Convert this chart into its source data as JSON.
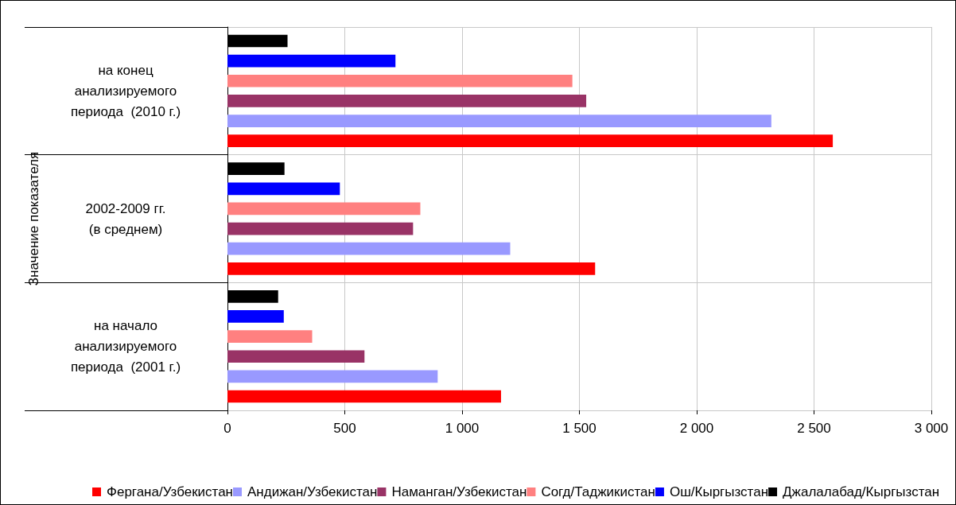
{
  "chart_data": {
    "type": "bar",
    "orientation": "horizontal",
    "ylabel": "Значение показателя",
    "categories": [
      "на конец\nанализируемого\nпериода  (2010 г.)",
      "2002-2009 гг.\n(в среднем)",
      "на начало\nанализируемого\nпериода  (2001 г.)"
    ],
    "series": [
      {
        "name": "Фергана/Узбекистан",
        "color": "#ff0000",
        "values": [
          2580,
          1567,
          1166
        ]
      },
      {
        "name": "Андижан/Узбекистан",
        "color": "#9999ff",
        "values": [
          2318,
          1205,
          896
        ]
      },
      {
        "name": "Наманган/Узбекистан",
        "color": "#993366",
        "values": [
          1529,
          791,
          584
        ]
      },
      {
        "name": "Согд/Таджикистан",
        "color": "#ff8080",
        "values": [
          1470,
          822,
          361
        ]
      },
      {
        "name": "Ош/Кыргызстан",
        "color": "#0000ff",
        "values": [
          716,
          479,
          240
        ]
      },
      {
        "name": "Джалалабад/Кыргызстан",
        "color": "#000000",
        "values": [
          256,
          243,
          216
        ]
      }
    ],
    "xlim": [
      0,
      3000
    ],
    "xticks": [
      0,
      500,
      {
        "value": 1000,
        "label": "1 000"
      },
      {
        "value": 1500,
        "label": "1 500"
      },
      {
        "value": 2000,
        "label": "2 000"
      },
      {
        "value": 2500,
        "label": "2 500"
      },
      {
        "value": 3000,
        "label": "3 000"
      }
    ],
    "grid": true,
    "legend": "bottom"
  }
}
